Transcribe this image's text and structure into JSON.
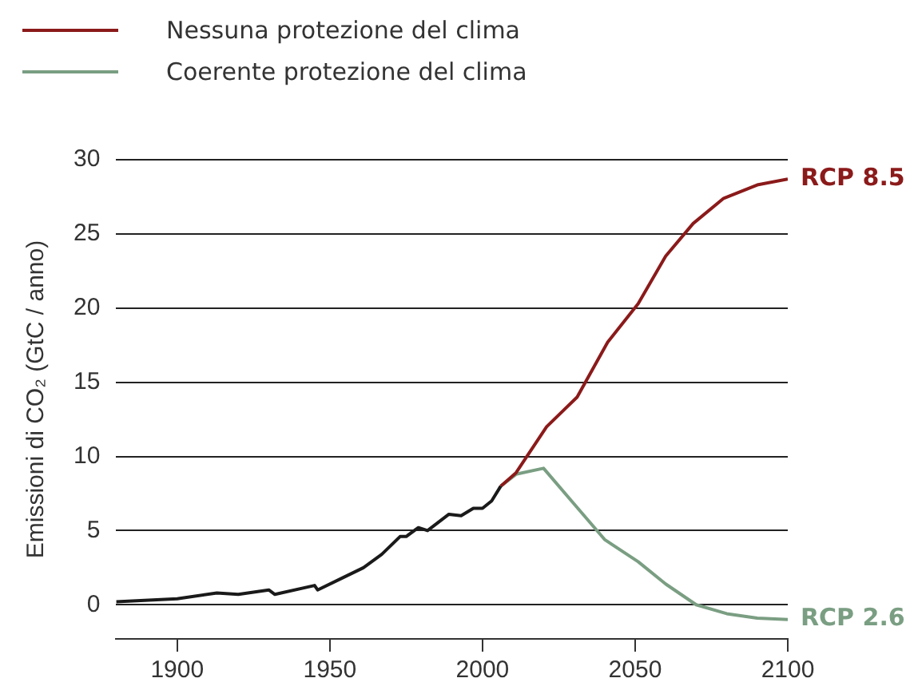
{
  "chart_data": {
    "type": "line",
    "ylabel": "Emissioni di CO₂ (GtC / anno)",
    "xlim": [
      1880,
      2100
    ],
    "xticks": [
      1900,
      1950,
      2000,
      2050,
      2100
    ],
    "ylim": [
      -2.3,
      30
    ],
    "yticks": [
      0,
      5,
      10,
      15,
      20,
      25,
      30
    ],
    "grid": "y",
    "legend": "top left",
    "marker": "none",
    "line_style": "solid",
    "series": [
      {
        "color": "#1a1a1a",
        "x": [
          1880,
          1900,
          1913,
          1920,
          1930,
          1932,
          1945,
          1946,
          1954,
          1961,
          1967,
          1973,
          1975,
          1979,
          1982,
          1989,
          1993,
          1997,
          2000,
          2003,
          2006
        ],
        "values": [
          0.2,
          0.4,
          0.8,
          0.7,
          1.0,
          0.7,
          1.3,
          1.0,
          1.8,
          2.5,
          3.4,
          4.6,
          4.6,
          5.2,
          5.0,
          6.1,
          6.0,
          6.5,
          6.5,
          7.0,
          8.0
        ]
      },
      {
        "name": "Nessuna protezione del clima",
        "color": "#8b1a1a",
        "x": [
          2006,
          2011,
          2021,
          2031,
          2041,
          2051,
          2060,
          2069,
          2079,
          2090,
          2100
        ],
        "values": [
          8.0,
          8.9,
          12.0,
          14.0,
          17.7,
          20.3,
          23.5,
          25.7,
          27.4,
          28.3,
          28.7
        ]
      },
      {
        "name": "Coerente protezione del clima",
        "color": "#7a9e82",
        "x": [
          2006,
          2011,
          2020,
          2030,
          2040,
          2051,
          2060,
          2070,
          2080,
          2090,
          2100
        ],
        "values": [
          8.0,
          8.8,
          9.2,
          6.8,
          4.4,
          2.9,
          1.4,
          0.0,
          -0.6,
          -0.9,
          -1.0
        ]
      }
    ],
    "annotations": [
      {
        "text": "RCP 8.5",
        "x": 2100,
        "y": 28.7
      },
      {
        "text": "RCP 2.6",
        "x": 2100,
        "y": -0.95
      }
    ]
  }
}
